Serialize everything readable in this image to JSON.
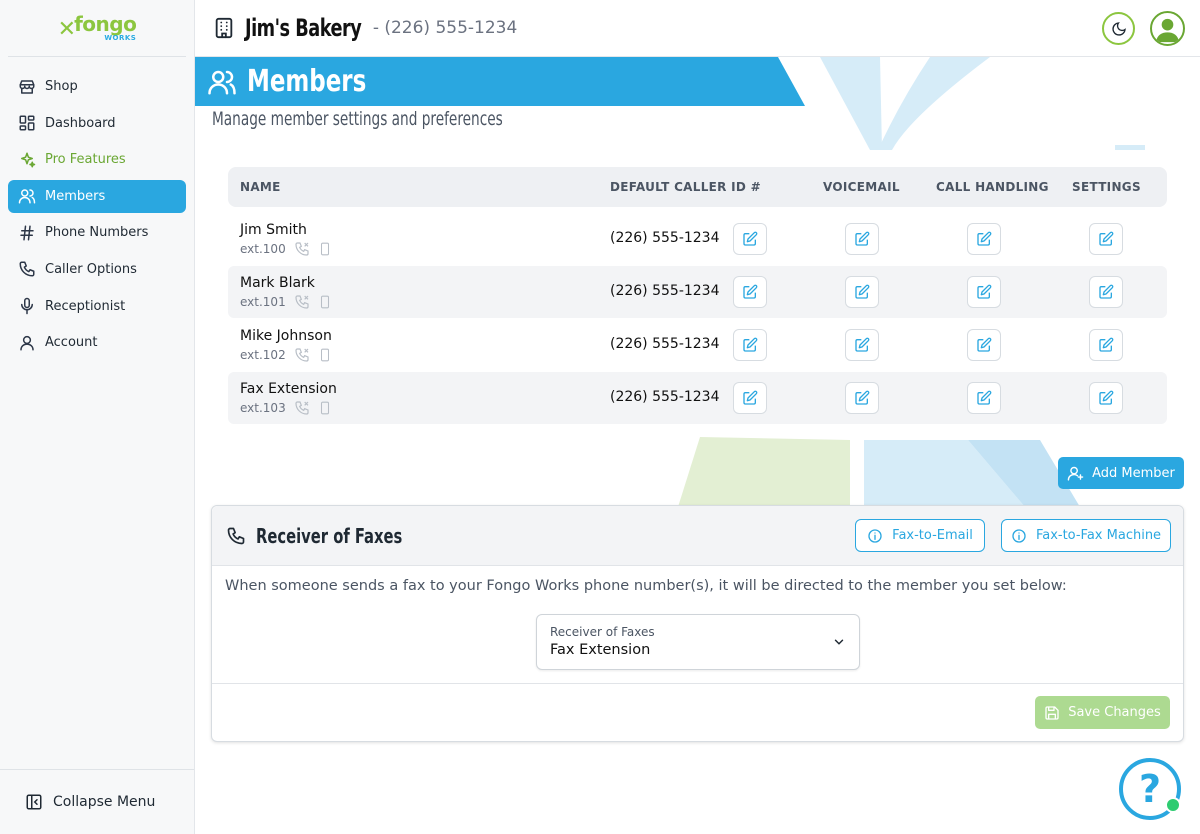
{
  "brand": {
    "logo_main": "fongo",
    "logo_sub": "WORKS"
  },
  "header": {
    "business_name": "Jim's Bakery",
    "business_phone": "- (226) 555-1234"
  },
  "sidebar": {
    "items": [
      {
        "label": "Shop",
        "icon": "store-icon"
      },
      {
        "label": "Dashboard",
        "icon": "dashboard-icon"
      },
      {
        "label": "Pro Features",
        "icon": "sparkle-icon"
      },
      {
        "label": "Members",
        "icon": "users-icon",
        "active": true
      },
      {
        "label": "Phone Numbers",
        "icon": "hash-icon"
      },
      {
        "label": "Caller Options",
        "icon": "phone-icon"
      },
      {
        "label": "Receptionist",
        "icon": "microphone-icon"
      },
      {
        "label": "Account",
        "icon": "user-icon"
      }
    ],
    "collapse_label": "Collapse Menu"
  },
  "page": {
    "title": "Members",
    "subtitle": "Manage member settings and preferences"
  },
  "table": {
    "headers": {
      "name": "NAME",
      "caller_id": "DEFAULT CALLER ID #",
      "voicemail": "VOICEMAIL",
      "call_handling": "CALL HANDLING",
      "settings": "SETTINGS"
    },
    "rows": [
      {
        "name": "Jim Smith",
        "ext": "ext.100",
        "caller_id": "(226) 555-1234"
      },
      {
        "name": "Mark Blark",
        "ext": "ext.101",
        "caller_id": "(226) 555-1234"
      },
      {
        "name": "Mike Johnson",
        "ext": "ext.102",
        "caller_id": "(226) 555-1234"
      },
      {
        "name": "Fax Extension",
        "ext": "ext.103",
        "caller_id": "(226) 555-1234"
      }
    ]
  },
  "add_member_label": "Add Member",
  "fax_card": {
    "title": "Receiver of Faxes",
    "fax_to_email_label": "Fax-to-Email",
    "fax_to_fax_label": "Fax-to-Fax Machine",
    "description": "When someone sends a fax to your Fongo Works phone number(s), it will be directed to the member you set below:",
    "select_label": "Receiver of Faxes",
    "select_value": "Fax Extension",
    "save_label": "Save Changes"
  },
  "help_label": "?",
  "colors": {
    "accent": "#2aa7e0",
    "brand_green": "#8cc63f",
    "save_disabled": "#a9d98c"
  }
}
